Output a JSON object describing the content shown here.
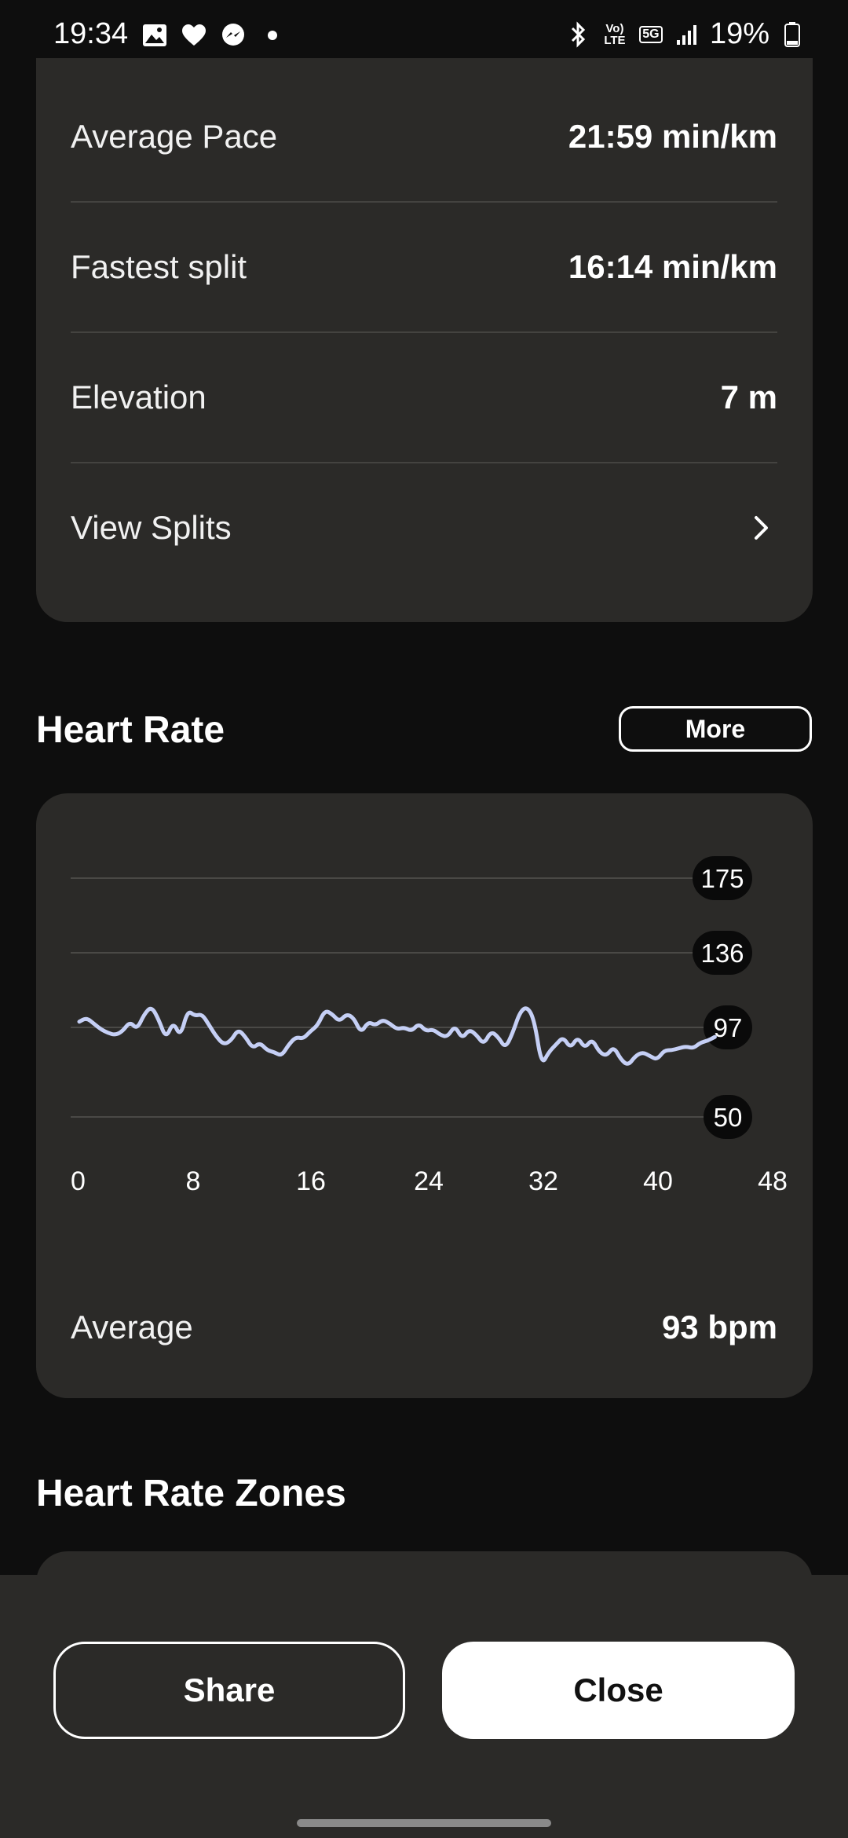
{
  "status_bar": {
    "time": "19:34",
    "battery": "19%",
    "network_5g": "5G",
    "volte_top": "Vo)",
    "volte_bottom": "LTE",
    "icons": [
      "image-icon",
      "heart-icon",
      "messenger-icon",
      "dot-icon",
      "bluetooth-icon",
      "signal-icon",
      "battery-icon"
    ]
  },
  "stats": {
    "rows": [
      {
        "label": "Average Pace",
        "value": "21:59 min/km"
      },
      {
        "label": "Fastest split",
        "value": "16:14 min/km"
      },
      {
        "label": "Elevation",
        "value": "7 m"
      },
      {
        "label": "View Splits",
        "value": ""
      }
    ]
  },
  "heart_rate": {
    "title": "Heart Rate",
    "more_label": "More",
    "average_label": "Average",
    "average_value": "93 bpm"
  },
  "chart_data": {
    "type": "line",
    "title": "",
    "xlabel": "",
    "ylabel": "",
    "x_ticks": [
      "0",
      "8",
      "16",
      "24",
      "32",
      "40",
      "48"
    ],
    "y_ticks": [
      "175",
      "136",
      "97",
      "50"
    ],
    "xlim": [
      0,
      48
    ],
    "ylim": [
      50,
      175
    ],
    "grid": true,
    "line_color": "#c5cff5",
    "series": [
      {
        "x": [
          0,
          0.5,
          1,
          1.5,
          2,
          2.5,
          3,
          3.5,
          4,
          4.5,
          5,
          5.5,
          6,
          6.5,
          7,
          7.5,
          8,
          8.5,
          9,
          9.5,
          10,
          10.5,
          11,
          11.5,
          12,
          12.5,
          13,
          13.5,
          14,
          14.5,
          15,
          15.5,
          16,
          16.5,
          17,
          17.5,
          18,
          18.5,
          19,
          19.5,
          20,
          20.5,
          21,
          21.5,
          22,
          22.5,
          23,
          23.5,
          24,
          24.5,
          25,
          25.5,
          26,
          26.5,
          27,
          27.5,
          28,
          28.5,
          29,
          29.5,
          30,
          30.5,
          31,
          31.5,
          32,
          32.5,
          33,
          33.5,
          34,
          34.5,
          35,
          35.5,
          36,
          36.5,
          37,
          37.5,
          38,
          38.5,
          39,
          39.5,
          40,
          40.5,
          41,
          41.5,
          42,
          42.5,
          43,
          43.5,
          44
        ],
        "y": [
          100,
          102,
          99,
          96,
          94,
          93,
          95,
          100,
          96,
          104,
          108,
          101,
          91,
          100,
          92,
          106,
          103,
          104,
          98,
          92,
          88,
          90,
          96,
          92,
          86,
          89,
          85,
          84,
          82,
          88,
          92,
          91,
          95,
          98,
          106,
          104,
          100,
          104,
          102,
          94,
          100,
          98,
          101,
          99,
          96,
          97,
          95,
          99,
          95,
          96,
          93,
          92,
          98,
          91,
          96,
          93,
          88,
          95,
          92,
          86,
          94,
          105,
          108,
          101,
          77,
          84,
          88,
          92,
          86,
          92,
          86,
          91,
          84,
          82,
          87,
          80,
          77,
          82,
          84,
          82,
          80,
          85,
          85,
          86,
          87,
          86,
          89,
          90,
          92
        ]
      }
    ]
  },
  "zones": {
    "title": "Heart Rate Zones"
  },
  "actions": {
    "share_label": "Share",
    "close_label": "Close"
  }
}
